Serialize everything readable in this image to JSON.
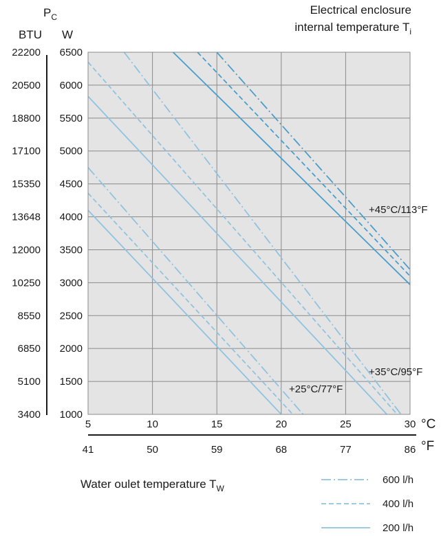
{
  "chart_data": {
    "type": "line",
    "title_line1": "Electrical enclosure",
    "title_line2": "internal temperature T",
    "title_subscript": "i",
    "y_symbol": "P",
    "y_symbol_subscript": "C",
    "y_unit_left": "BTU",
    "y_unit_right": "W",
    "xlabel": "Water oulet temperature T",
    "xlabel_subscript": "W",
    "x_unit_celsius": "°C",
    "x_unit_fahrenheit": "°F",
    "xlim": [
      5,
      30
    ],
    "ylim": [
      1000,
      6500
    ],
    "grid": true,
    "x_ticks_celsius": [
      "5",
      "10",
      "15",
      "20",
      "25",
      "30"
    ],
    "x_ticks_fahrenheit": [
      "41",
      "50",
      "59",
      "68",
      "77",
      "86"
    ],
    "y_ticks_watt": [
      "1000",
      "1500",
      "2000",
      "2500",
      "3000",
      "3500",
      "4000",
      "4500",
      "5000",
      "5500",
      "6000",
      "6500"
    ],
    "y_ticks_btu": [
      "3400",
      "5100",
      "6850",
      "8550",
      "10250",
      "12000",
      "13648",
      "15350",
      "17100",
      "18800",
      "20500",
      "22200"
    ],
    "annotations": [
      "+45°C/113°F",
      "+35°C/95°F",
      "+25°C/77°F"
    ],
    "legend": [
      {
        "label": "600 l/h",
        "style": "dashdot"
      },
      {
        "label": "400 l/h",
        "style": "dashed"
      },
      {
        "label": "200 l/h",
        "style": "solid"
      }
    ],
    "colors": {
      "light": "#8fc3df",
      "dark": "#4a9ecb",
      "plot_bg": "#e4e4e4",
      "grid": "#8a8a8a"
    },
    "series": [
      {
        "temp": "+45°C/113°F",
        "flow": "600 l/h",
        "style": "dashdot",
        "color": "dark",
        "x": [
          15,
          30
        ],
        "y": [
          6500,
          3200
        ]
      },
      {
        "temp": "+45°C/113°F",
        "flow": "400 l/h",
        "style": "dashed",
        "color": "dark",
        "x": [
          13.5,
          30
        ],
        "y": [
          6500,
          3100
        ]
      },
      {
        "temp": "+45°C/113°F",
        "flow": "200 l/h",
        "style": "solid",
        "color": "dark",
        "x": [
          11.6,
          30
        ],
        "y": [
          6500,
          2970
        ]
      },
      {
        "temp": "+35°C/95°F",
        "flow": "600 l/h",
        "style": "dashdot",
        "color": "light",
        "x": [
          7.8,
          29.3
        ],
        "y": [
          6500,
          1000
        ]
      },
      {
        "temp": "+35°C/95°F",
        "flow": "400 l/h",
        "style": "dashed",
        "color": "light",
        "x": [
          5,
          29
        ],
        "y": [
          6350,
          1000
        ]
      },
      {
        "temp": "+35°C/95°F",
        "flow": "200 l/h",
        "style": "solid",
        "color": "light",
        "x": [
          5,
          28.2
        ],
        "y": [
          5830,
          1000
        ]
      },
      {
        "temp": "+25°C/77°F",
        "flow": "600 l/h",
        "style": "dashdot",
        "color": "light",
        "x": [
          5,
          21.7
        ],
        "y": [
          4750,
          1000
        ]
      },
      {
        "temp": "+25°C/77°F",
        "flow": "400 l/h",
        "style": "dashed",
        "color": "light",
        "x": [
          5,
          20.9
        ],
        "y": [
          4360,
          1000
        ]
      },
      {
        "temp": "+25°C/77°F",
        "flow": "200 l/h",
        "style": "solid",
        "color": "light",
        "x": [
          5,
          20
        ],
        "y": [
          4100,
          1000
        ]
      }
    ]
  }
}
